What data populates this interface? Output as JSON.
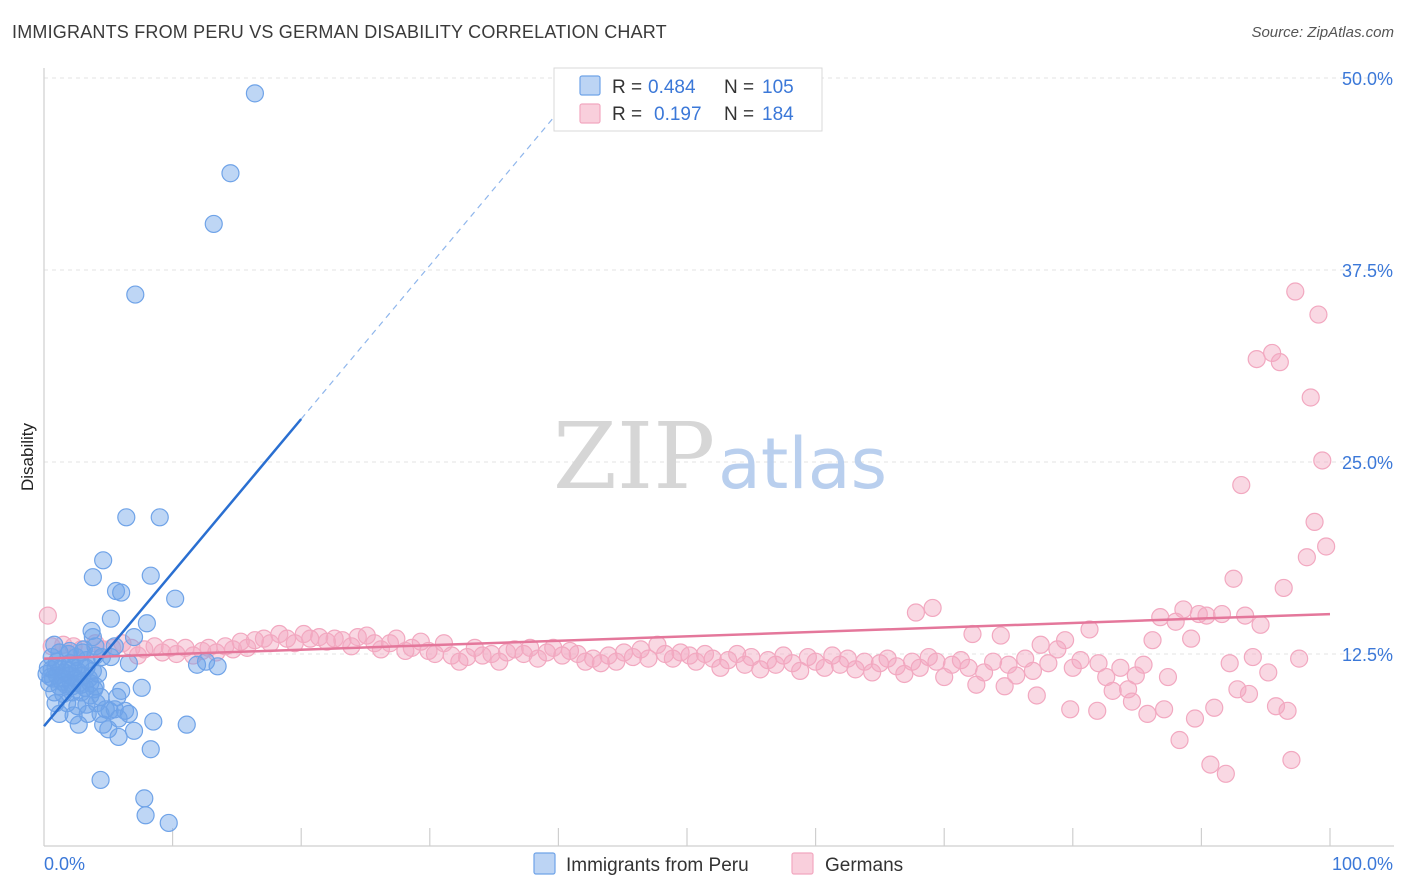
{
  "title": "IMMIGRANTS FROM PERU VS GERMAN DISABILITY CORRELATION CHART",
  "source": "Source: ZipAtlas.com",
  "watermark": {
    "zip": "ZIP",
    "atlas": "atlas"
  },
  "legend_top": [
    {
      "r_label": "R =",
      "r_value": "0.484",
      "n_label": "N =",
      "n_value": "105"
    },
    {
      "r_label": "R =",
      "r_value": "0.197",
      "n_label": "N =",
      "n_value": "184"
    }
  ],
  "colors": {
    "peru": "#6fa3e8",
    "peru_line": "#2a6fd1",
    "german": "#f2a8c0",
    "german_line": "#e4779b",
    "axis_text": "#3b78d8"
  },
  "chart_data": {
    "type": "scatter",
    "xlabel": "",
    "ylabel": "Disability",
    "xlim": [
      0,
      100
    ],
    "ylim": [
      0,
      50
    ],
    "x_tick_labels": [
      "0.0%",
      "100.0%"
    ],
    "y_ticks": [
      12.5,
      25.0,
      37.5,
      50.0
    ],
    "y_tick_labels": [
      "12.5%",
      "25.0%",
      "37.5%",
      "50.0%"
    ],
    "grid": true,
    "legend_position": "top-center",
    "series": [
      {
        "name": "Immigrants from Peru",
        "r": 0.484,
        "n": 105,
        "trend": {
          "x0": 0,
          "y0": 7.8,
          "x1": 20,
          "y1": 27.8,
          "dashed_to_x": 42
        },
        "points": [
          [
            16.4,
            49
          ],
          [
            14.5,
            43.8
          ],
          [
            13.2,
            40.5
          ],
          [
            7.1,
            35.9
          ],
          [
            6.4,
            21.4
          ],
          [
            9.0,
            21.4
          ],
          [
            4.6,
            18.6
          ],
          [
            8.3,
            17.6
          ],
          [
            3.8,
            17.5
          ],
          [
            5.6,
            16.6
          ],
          [
            6.0,
            16.5
          ],
          [
            10.2,
            16.1
          ],
          [
            8.0,
            14.5
          ],
          [
            5.2,
            14.8
          ],
          [
            3.7,
            14.0
          ],
          [
            3.8,
            13.6
          ],
          [
            7.0,
            13.6
          ],
          [
            5.5,
            13.0
          ],
          [
            0.8,
            13.1
          ],
          [
            1.2,
            12.6
          ],
          [
            2.0,
            12.7
          ],
          [
            3.0,
            12.6
          ],
          [
            4.0,
            12.4
          ],
          [
            4.5,
            12.3
          ],
          [
            5.2,
            12.3
          ],
          [
            0.3,
            11.6
          ],
          [
            0.6,
            11.5
          ],
          [
            0.9,
            11.6
          ],
          [
            1.3,
            11.5
          ],
          [
            1.8,
            11.5
          ],
          [
            2.3,
            11.6
          ],
          [
            2.8,
            11.8
          ],
          [
            3.3,
            11.6
          ],
          [
            3.8,
            11.4
          ],
          [
            0.5,
            11.0
          ],
          [
            1.0,
            11.1
          ],
          [
            1.5,
            10.9
          ],
          [
            2.0,
            11.1
          ],
          [
            2.5,
            10.9
          ],
          [
            3.0,
            11.1
          ],
          [
            3.5,
            10.9
          ],
          [
            4.2,
            11.2
          ],
          [
            0.4,
            10.6
          ],
          [
            1.2,
            10.4
          ],
          [
            1.7,
            10.5
          ],
          [
            2.2,
            10.4
          ],
          [
            2.7,
            10.6
          ],
          [
            3.2,
            10.3
          ],
          [
            3.6,
            10.6
          ],
          [
            4.0,
            10.4
          ],
          [
            0.8,
            10.0
          ],
          [
            1.5,
            9.9
          ],
          [
            2.2,
            10.0
          ],
          [
            2.9,
            10.0
          ],
          [
            3.6,
            9.8
          ],
          [
            4.4,
            9.7
          ],
          [
            5.7,
            9.7
          ],
          [
            6.0,
            10.1
          ],
          [
            7.6,
            10.3
          ],
          [
            0.9,
            9.3
          ],
          [
            1.8,
            9.3
          ],
          [
            2.6,
            9.1
          ],
          [
            3.3,
            9.2
          ],
          [
            4.1,
            9.3
          ],
          [
            4.8,
            8.9
          ],
          [
            5.5,
            8.9
          ],
          [
            6.3,
            8.8
          ],
          [
            1.2,
            8.6
          ],
          [
            2.3,
            8.5
          ],
          [
            3.4,
            8.6
          ],
          [
            4.4,
            8.6
          ],
          [
            5.1,
            8.8
          ],
          [
            5.8,
            8.3
          ],
          [
            6.6,
            8.6
          ],
          [
            4.6,
            7.9
          ],
          [
            5.0,
            7.6
          ],
          [
            5.8,
            7.1
          ],
          [
            7.0,
            7.5
          ],
          [
            8.5,
            8.1
          ],
          [
            11.1,
            7.9
          ],
          [
            2.7,
            7.9
          ],
          [
            11.9,
            11.8
          ],
          [
            13.5,
            11.7
          ],
          [
            6.6,
            11.9
          ],
          [
            4.4,
            4.3
          ],
          [
            7.8,
            3.1
          ],
          [
            7.9,
            2.0
          ],
          [
            9.7,
            1.5
          ],
          [
            8.3,
            6.3
          ],
          [
            12.6,
            12.0
          ],
          [
            2.0,
            11.9
          ],
          [
            1.0,
            12.0
          ],
          [
            2.5,
            12.3
          ],
          [
            3.3,
            12.1
          ],
          [
            0.2,
            11.2
          ],
          [
            0.7,
            10.9
          ],
          [
            1.4,
            10.7
          ],
          [
            2.1,
            10.6
          ],
          [
            2.9,
            10.5
          ],
          [
            3.9,
            10.2
          ],
          [
            0.6,
            12.3
          ],
          [
            1.9,
            12.5
          ],
          [
            3.1,
            12.8
          ],
          [
            4.0,
            13.0
          ],
          [
            1.6,
            11.3
          ],
          [
            2.6,
            11.4
          ]
        ]
      },
      {
        "name": "Germans",
        "r": 0.197,
        "n": 184,
        "trend": {
          "x0": 0,
          "y0": 12.2,
          "x1": 100,
          "y1": 15.1
        },
        "points": [
          [
            0.3,
            15.0
          ],
          [
            0.6,
            13.0
          ],
          [
            1.5,
            13.1
          ],
          [
            2.3,
            13.0
          ],
          [
            2.9,
            12.8
          ],
          [
            4.0,
            13.2
          ],
          [
            4.6,
            12.8
          ],
          [
            5.3,
            12.9
          ],
          [
            6.1,
            13.2
          ],
          [
            6.8,
            12.9
          ],
          [
            7.3,
            12.4
          ],
          [
            7.8,
            12.8
          ],
          [
            8.6,
            13.0
          ],
          [
            9.2,
            12.6
          ],
          [
            9.8,
            12.9
          ],
          [
            10.3,
            12.5
          ],
          [
            11.0,
            12.9
          ],
          [
            11.6,
            12.4
          ],
          [
            12.3,
            12.7
          ],
          [
            12.8,
            12.9
          ],
          [
            13.4,
            12.6
          ],
          [
            14.1,
            13.0
          ],
          [
            14.7,
            12.8
          ],
          [
            15.3,
            13.3
          ],
          [
            15.8,
            12.9
          ],
          [
            16.4,
            13.4
          ],
          [
            17.1,
            13.5
          ],
          [
            17.6,
            13.2
          ],
          [
            18.3,
            13.8
          ],
          [
            18.9,
            13.5
          ],
          [
            19.5,
            13.2
          ],
          [
            20.2,
            13.8
          ],
          [
            20.7,
            13.5
          ],
          [
            21.4,
            13.6
          ],
          [
            22.0,
            13.3
          ],
          [
            22.6,
            13.5
          ],
          [
            23.2,
            13.4
          ],
          [
            23.9,
            13.0
          ],
          [
            24.4,
            13.6
          ],
          [
            25.1,
            13.7
          ],
          [
            25.7,
            13.2
          ],
          [
            26.2,
            12.8
          ],
          [
            26.9,
            13.2
          ],
          [
            27.4,
            13.5
          ],
          [
            28.1,
            12.7
          ],
          [
            28.6,
            12.9
          ],
          [
            29.3,
            13.3
          ],
          [
            29.9,
            12.7
          ],
          [
            30.4,
            12.5
          ],
          [
            31.1,
            13.2
          ],
          [
            31.7,
            12.4
          ],
          [
            32.3,
            12.0
          ],
          [
            32.9,
            12.3
          ],
          [
            33.5,
            12.9
          ],
          [
            34.1,
            12.4
          ],
          [
            34.8,
            12.5
          ],
          [
            35.4,
            12.0
          ],
          [
            36.0,
            12.6
          ],
          [
            36.6,
            12.8
          ],
          [
            37.3,
            12.5
          ],
          [
            37.8,
            12.9
          ],
          [
            38.4,
            12.2
          ],
          [
            39.1,
            12.6
          ],
          [
            39.6,
            12.9
          ],
          [
            40.3,
            12.4
          ],
          [
            40.9,
            12.7
          ],
          [
            41.5,
            12.5
          ],
          [
            42.1,
            12.0
          ],
          [
            42.7,
            12.2
          ],
          [
            43.3,
            11.9
          ],
          [
            43.9,
            12.4
          ],
          [
            44.5,
            12.0
          ],
          [
            45.1,
            12.6
          ],
          [
            45.8,
            12.3
          ],
          [
            46.4,
            12.8
          ],
          [
            47.0,
            12.2
          ],
          [
            47.7,
            13.1
          ],
          [
            48.3,
            12.5
          ],
          [
            48.9,
            12.2
          ],
          [
            49.5,
            12.6
          ],
          [
            50.2,
            12.4
          ],
          [
            50.7,
            12.0
          ],
          [
            51.4,
            12.5
          ],
          [
            52.0,
            12.2
          ],
          [
            52.6,
            11.6
          ],
          [
            53.2,
            12.1
          ],
          [
            53.9,
            12.5
          ],
          [
            54.5,
            11.8
          ],
          [
            55.0,
            12.3
          ],
          [
            55.7,
            11.5
          ],
          [
            56.3,
            12.1
          ],
          [
            56.9,
            11.8
          ],
          [
            57.5,
            12.4
          ],
          [
            58.2,
            11.9
          ],
          [
            58.8,
            11.4
          ],
          [
            59.4,
            12.3
          ],
          [
            60.0,
            12.0
          ],
          [
            60.7,
            11.6
          ],
          [
            61.3,
            12.4
          ],
          [
            61.9,
            11.8
          ],
          [
            62.5,
            12.2
          ],
          [
            63.1,
            11.5
          ],
          [
            63.8,
            12.0
          ],
          [
            64.4,
            11.3
          ],
          [
            65.0,
            11.9
          ],
          [
            65.6,
            12.2
          ],
          [
            66.3,
            11.7
          ],
          [
            66.9,
            11.2
          ],
          [
            67.5,
            12.0
          ],
          [
            68.1,
            11.6
          ],
          [
            68.8,
            12.3
          ],
          [
            69.4,
            12.0
          ],
          [
            70.0,
            11.0
          ],
          [
            70.6,
            11.8
          ],
          [
            71.3,
            12.1
          ],
          [
            71.9,
            11.6
          ],
          [
            72.5,
            10.5
          ],
          [
            73.1,
            11.3
          ],
          [
            73.8,
            12.0
          ],
          [
            74.4,
            13.7
          ],
          [
            75.0,
            11.8
          ],
          [
            75.6,
            11.1
          ],
          [
            76.3,
            12.2
          ],
          [
            76.9,
            11.4
          ],
          [
            77.5,
            13.1
          ],
          [
            78.1,
            11.9
          ],
          [
            78.8,
            12.8
          ],
          [
            79.4,
            13.4
          ],
          [
            80.0,
            11.6
          ],
          [
            80.6,
            12.1
          ],
          [
            81.3,
            14.1
          ],
          [
            82.0,
            11.9
          ],
          [
            82.6,
            11.0
          ],
          [
            83.1,
            10.1
          ],
          [
            83.7,
            11.6
          ],
          [
            84.3,
            10.2
          ],
          [
            84.9,
            11.1
          ],
          [
            85.5,
            11.8
          ],
          [
            86.2,
            13.4
          ],
          [
            86.8,
            14.9
          ],
          [
            87.4,
            11.0
          ],
          [
            88.0,
            14.6
          ],
          [
            88.6,
            15.4
          ],
          [
            89.2,
            13.5
          ],
          [
            89.8,
            15.1
          ],
          [
            90.4,
            15.0
          ],
          [
            91.0,
            9.0
          ],
          [
            91.6,
            15.1
          ],
          [
            92.2,
            11.9
          ],
          [
            92.8,
            10.2
          ],
          [
            93.4,
            15.0
          ],
          [
            94.0,
            12.3
          ],
          [
            94.6,
            14.4
          ],
          [
            95.2,
            11.3
          ],
          [
            95.8,
            9.1
          ],
          [
            96.4,
            16.8
          ],
          [
            97.0,
            5.6
          ],
          [
            97.6,
            12.2
          ],
          [
            98.2,
            18.8
          ],
          [
            98.8,
            21.1
          ],
          [
            99.4,
            25.1
          ],
          [
            99.7,
            19.5
          ],
          [
            87.1,
            8.9
          ],
          [
            88.3,
            6.9
          ],
          [
            89.5,
            8.3
          ],
          [
            92.5,
            17.4
          ],
          [
            93.1,
            23.5
          ],
          [
            94.3,
            31.7
          ],
          [
            95.5,
            32.1
          ],
          [
            96.1,
            31.5
          ],
          [
            97.3,
            36.1
          ],
          [
            98.5,
            29.2
          ],
          [
            99.1,
            34.6
          ],
          [
            84.6,
            9.4
          ],
          [
            85.8,
            8.6
          ],
          [
            91.9,
            4.7
          ],
          [
            90.7,
            5.3
          ],
          [
            93.7,
            9.9
          ],
          [
            96.7,
            8.8
          ],
          [
            77.2,
            9.8
          ],
          [
            79.8,
            8.9
          ],
          [
            81.9,
            8.8
          ],
          [
            74.7,
            10.4
          ],
          [
            72.2,
            13.8
          ],
          [
            69.1,
            15.5
          ],
          [
            67.8,
            15.2
          ]
        ]
      }
    ]
  }
}
